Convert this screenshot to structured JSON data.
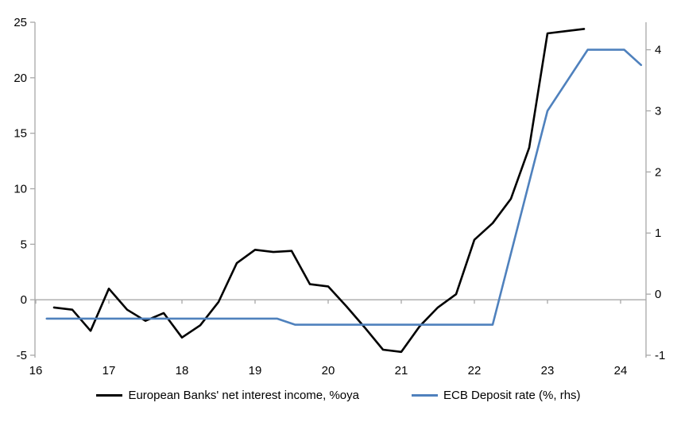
{
  "chart_data": {
    "type": "line",
    "title": "",
    "grid": false,
    "legend_position": "bottom",
    "axis_color": "#A8A8A8",
    "zero_line_color": "#A8A8A8",
    "x_axis": {
      "ticks": [
        16,
        17,
        18,
        19,
        20,
        21,
        22,
        23,
        24
      ],
      "range": [
        16,
        24.35
      ]
    },
    "y_axis_left": {
      "ticks": [
        -5,
        0,
        5,
        10,
        15,
        20,
        25
      ],
      "range": [
        -5,
        25
      ]
    },
    "y_axis_right": {
      "ticks": [
        -1,
        0,
        1,
        2,
        3,
        4
      ],
      "range": [
        -1,
        4.45
      ]
    },
    "series": [
      {
        "name": "European Banks' net interest income, %oya",
        "axis": "left",
        "color": "#000000",
        "points": [
          [
            16.25,
            -0.7
          ],
          [
            16.5,
            -0.9
          ],
          [
            16.75,
            -2.8
          ],
          [
            17.0,
            1.0
          ],
          [
            17.25,
            -0.9
          ],
          [
            17.5,
            -1.9
          ],
          [
            17.75,
            -1.2
          ],
          [
            18.0,
            -3.4
          ],
          [
            18.25,
            -2.3
          ],
          [
            18.5,
            -0.2
          ],
          [
            18.75,
            3.3
          ],
          [
            19.0,
            4.5
          ],
          [
            19.25,
            4.3
          ],
          [
            19.5,
            4.4
          ],
          [
            19.75,
            1.4
          ],
          [
            20.0,
            1.2
          ],
          [
            20.25,
            -0.6
          ],
          [
            20.5,
            -2.5
          ],
          [
            20.75,
            -4.5
          ],
          [
            21.0,
            -4.7
          ],
          [
            21.25,
            -2.4
          ],
          [
            21.5,
            -0.7
          ],
          [
            21.75,
            0.5
          ],
          [
            22.0,
            5.4
          ],
          [
            22.25,
            6.9
          ],
          [
            22.5,
            9.1
          ],
          [
            22.75,
            13.7
          ],
          [
            23.0,
            24.0
          ],
          [
            23.25,
            24.2
          ],
          [
            23.5,
            24.4
          ]
        ]
      },
      {
        "name": "ECB Deposit rate (%, rhs)",
        "axis": "right",
        "color": "#4F81BD",
        "points": [
          [
            16.15,
            -0.4
          ],
          [
            19.3,
            -0.4
          ],
          [
            19.55,
            -0.5
          ],
          [
            22.25,
            -0.5
          ],
          [
            23.0,
            3.0
          ],
          [
            23.55,
            4.0
          ],
          [
            24.05,
            4.0
          ],
          [
            24.28,
            3.75
          ]
        ]
      }
    ]
  }
}
